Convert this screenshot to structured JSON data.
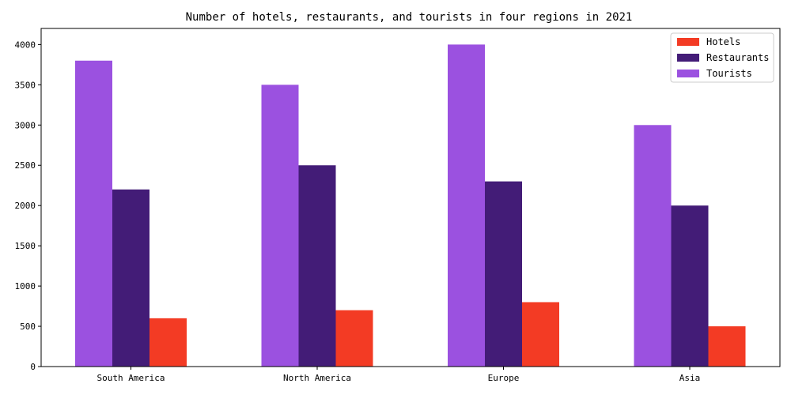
{
  "chart_data": {
    "type": "bar",
    "title": "Number of hotels, restaurants, and tourists in four regions in 2021",
    "xlabel": "",
    "ylabel": "",
    "categories": [
      "South America",
      "North America",
      "Europe",
      "Asia"
    ],
    "series": [
      {
        "name": "Tourists",
        "values": [
          3800,
          3500,
          4000,
          3000
        ],
        "color": "#9B51E0"
      },
      {
        "name": "Restaurants",
        "values": [
          2200,
          2500,
          2300,
          2000
        ],
        "color": "#431C77"
      },
      {
        "name": "Hotels",
        "values": [
          600,
          700,
          800,
          500
        ],
        "color": "#F33B24"
      }
    ],
    "legend_order": [
      "Hotels",
      "Restaurants",
      "Tourists"
    ],
    "legend_position": "top-right",
    "ylim": [
      0,
      4200
    ],
    "yticks": [
      "0",
      "500",
      "1000",
      "1500",
      "2000",
      "2500",
      "3000",
      "3500",
      "4000"
    ],
    "grid": false
  }
}
